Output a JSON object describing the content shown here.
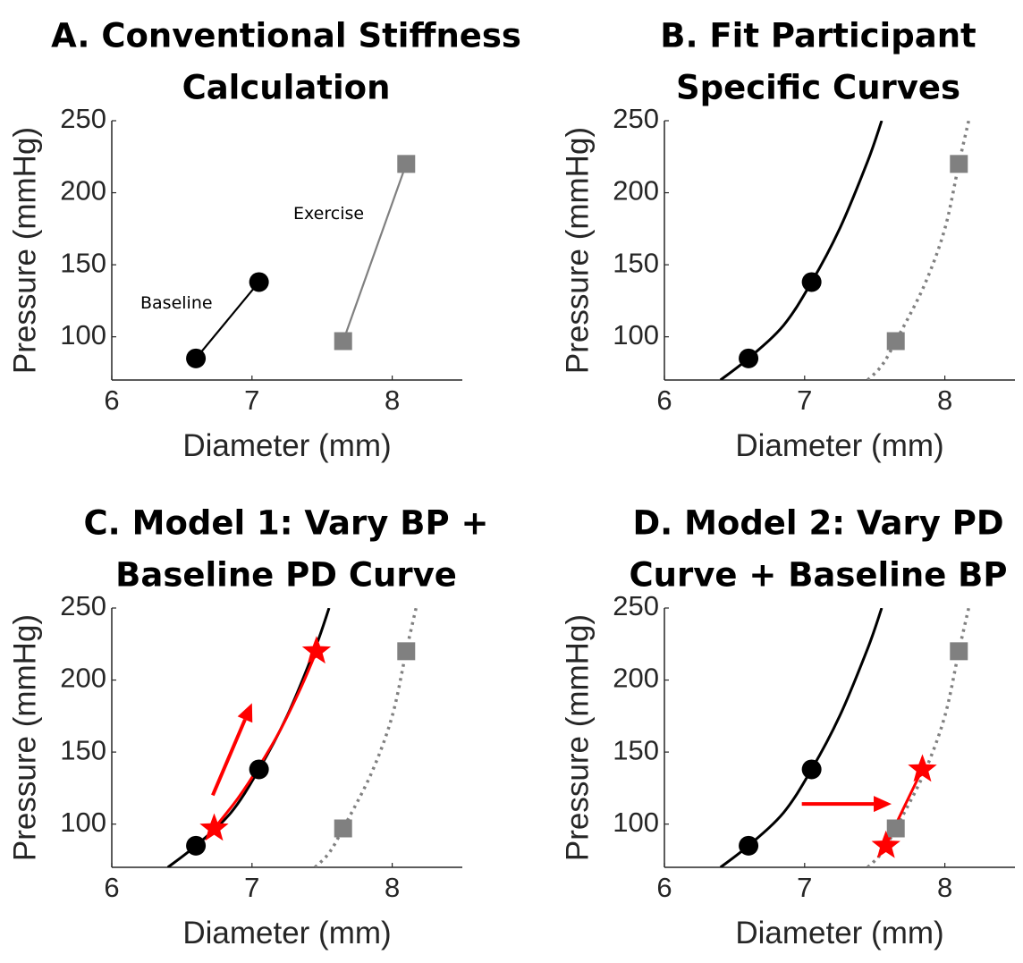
{
  "colors": {
    "baseline": "#000000",
    "exercise": "#808080",
    "model": "#ff0000",
    "axis": "#262626"
  },
  "chart_data": [
    {
      "id": "A",
      "type": "line",
      "title_lines": [
        "A. Conventional Stiffness",
        "Calculation"
      ],
      "xlabel": "Diameter (mm)",
      "ylabel": "Pressure (mmHg)",
      "xlim": [
        6,
        8.5
      ],
      "ylim": [
        70,
        250
      ],
      "xticks": [
        "6",
        "7",
        "8"
      ],
      "yticks": [
        "100",
        "150",
        "200",
        "250"
      ],
      "annotations": [
        "Baseline",
        "Exercise"
      ],
      "series": [
        {
          "name": "Baseline",
          "marker": "circle",
          "points": [
            [
              6.6,
              85
            ],
            [
              7.05,
              138
            ]
          ]
        },
        {
          "name": "Exercise",
          "marker": "square",
          "points": [
            [
              7.65,
              97
            ],
            [
              8.1,
              220
            ]
          ]
        }
      ]
    },
    {
      "id": "B",
      "type": "line",
      "title_lines": [
        "B. Fit Participant",
        "Specific Curves"
      ],
      "xlabel": "Diameter (mm)",
      "ylabel": "Pressure (mmHg)",
      "xlim": [
        6,
        8.5
      ],
      "ylim": [
        70,
        250
      ],
      "xticks": [
        "6",
        "7",
        "8"
      ],
      "yticks": [
        "100",
        "150",
        "200",
        "250"
      ],
      "curves": [
        {
          "style": "solid",
          "points": [
            [
              6.4,
              70
            ],
            [
              6.6,
              85
            ],
            [
              6.85,
              108
            ],
            [
              7.05,
              138
            ],
            [
              7.25,
              175
            ],
            [
              7.45,
              222
            ],
            [
              7.55,
              250
            ]
          ]
        },
        {
          "style": "dotted",
          "points": [
            [
              7.45,
              70
            ],
            [
              7.55,
              80
            ],
            [
              7.65,
              97
            ],
            [
              7.85,
              135
            ],
            [
              8.0,
              175
            ],
            [
              8.1,
              220
            ],
            [
              8.17,
              250
            ]
          ]
        }
      ],
      "points": [
        {
          "marker": "circle",
          "x": 6.6,
          "y": 85
        },
        {
          "marker": "circle",
          "x": 7.05,
          "y": 138
        },
        {
          "marker": "square",
          "x": 7.65,
          "y": 97
        },
        {
          "marker": "square",
          "x": 8.1,
          "y": 220
        }
      ]
    },
    {
      "id": "C",
      "type": "line",
      "title_lines": [
        "C. Model 1: Vary BP +",
        "Baseline PD Curve"
      ],
      "xlabel": "Diameter (mm)",
      "ylabel": "Pressure (mmHg)",
      "xlim": [
        6,
        8.5
      ],
      "ylim": [
        70,
        250
      ],
      "xticks": [
        "6",
        "7",
        "8"
      ],
      "yticks": [
        "100",
        "150",
        "200",
        "250"
      ],
      "curves": [
        {
          "style": "solid",
          "points": [
            [
              6.4,
              70
            ],
            [
              6.6,
              85
            ],
            [
              6.85,
              108
            ],
            [
              7.05,
              138
            ],
            [
              7.25,
              175
            ],
            [
              7.45,
              222
            ],
            [
              7.55,
              250
            ]
          ]
        },
        {
          "style": "dotted",
          "points": [
            [
              7.45,
              70
            ],
            [
              7.55,
              80
            ],
            [
              7.65,
              97
            ],
            [
              7.85,
              135
            ],
            [
              8.0,
              175
            ],
            [
              8.1,
              220
            ],
            [
              8.17,
              250
            ]
          ]
        },
        {
          "style": "red",
          "points": [
            [
              6.73,
              97
            ],
            [
              6.9,
              118
            ],
            [
              7.05,
              140
            ],
            [
              7.2,
              165
            ],
            [
              7.35,
              195
            ],
            [
              7.46,
              220
            ]
          ]
        }
      ],
      "points": [
        {
          "marker": "circle",
          "x": 6.6,
          "y": 85
        },
        {
          "marker": "circle",
          "x": 7.05,
          "y": 138
        },
        {
          "marker": "square",
          "x": 7.65,
          "y": 97
        },
        {
          "marker": "square",
          "x": 8.1,
          "y": 220
        },
        {
          "marker": "star",
          "x": 6.73,
          "y": 97
        },
        {
          "marker": "star",
          "x": 7.46,
          "y": 220
        }
      ],
      "arrows": [
        {
          "from": [
            6.72,
            120
          ],
          "to": [
            7.0,
            184
          ]
        }
      ]
    },
    {
      "id": "D",
      "type": "line",
      "title_lines": [
        "D. Model 2: Vary PD",
        "Curve + Baseline BP"
      ],
      "xlabel": "Diameter (mm)",
      "ylabel": "Pressure (mmHg)",
      "xlim": [
        6,
        8.5
      ],
      "ylim": [
        70,
        250
      ],
      "xticks": [
        "6",
        "7",
        "8"
      ],
      "yticks": [
        "100",
        "150",
        "200",
        "250"
      ],
      "curves": [
        {
          "style": "solid",
          "points": [
            [
              6.4,
              70
            ],
            [
              6.6,
              85
            ],
            [
              6.85,
              108
            ],
            [
              7.05,
              138
            ],
            [
              7.25,
              175
            ],
            [
              7.45,
              222
            ],
            [
              7.55,
              250
            ]
          ]
        },
        {
          "style": "dotted",
          "points": [
            [
              7.45,
              70
            ],
            [
              7.55,
              80
            ],
            [
              7.65,
              97
            ],
            [
              7.85,
              135
            ],
            [
              8.0,
              175
            ],
            [
              8.1,
              220
            ],
            [
              8.17,
              250
            ]
          ]
        },
        {
          "style": "red",
          "points": [
            [
              7.58,
              85
            ],
            [
              7.7,
              110
            ],
            [
              7.84,
              138
            ]
          ]
        }
      ],
      "points": [
        {
          "marker": "circle",
          "x": 6.6,
          "y": 85
        },
        {
          "marker": "circle",
          "x": 7.05,
          "y": 138
        },
        {
          "marker": "square",
          "x": 7.65,
          "y": 97
        },
        {
          "marker": "square",
          "x": 8.1,
          "y": 220
        },
        {
          "marker": "star",
          "x": 7.58,
          "y": 85
        },
        {
          "marker": "star",
          "x": 7.84,
          "y": 138
        }
      ],
      "arrows": [
        {
          "from": [
            6.98,
            114
          ],
          "to": [
            7.62,
            114
          ]
        }
      ]
    }
  ]
}
